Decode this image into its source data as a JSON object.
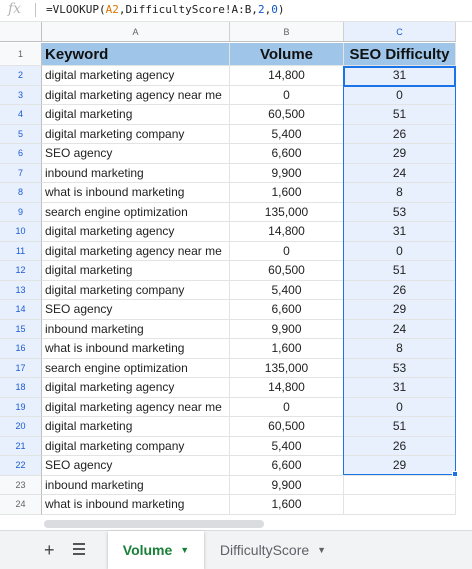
{
  "formula_bar": {
    "fx_label": "fx",
    "formula_prefix": "=VLOOKUP(",
    "formula_ref": "A2",
    "formula_mid": ",DifficultyScore!A:B,",
    "formula_n1": "2",
    "formula_comma": ",",
    "formula_n2": "0",
    "formula_suffix": ")"
  },
  "columns": [
    "A",
    "B",
    "C"
  ],
  "header_row": {
    "row_number": "1",
    "keyword": "Keyword",
    "volume": "Volume",
    "seo_difficulty": "SEO Difficulty"
  },
  "rows": [
    {
      "n": "2",
      "keyword": "digital marketing agency",
      "volume": "14,800",
      "difficulty": "31"
    },
    {
      "n": "3",
      "keyword": "digital marketing agency near me",
      "volume": "0",
      "difficulty": "0"
    },
    {
      "n": "4",
      "keyword": "digital marketing",
      "volume": "60,500",
      "difficulty": "51"
    },
    {
      "n": "5",
      "keyword": "digital marketing company",
      "volume": "5,400",
      "difficulty": "26"
    },
    {
      "n": "6",
      "keyword": "SEO agency",
      "volume": "6,600",
      "difficulty": "29"
    },
    {
      "n": "7",
      "keyword": "inbound marketing",
      "volume": "9,900",
      "difficulty": "24"
    },
    {
      "n": "8",
      "keyword": "what is inbound marketing",
      "volume": "1,600",
      "difficulty": "8"
    },
    {
      "n": "9",
      "keyword": "search engine optimization",
      "volume": "135,000",
      "difficulty": "53"
    },
    {
      "n": "10",
      "keyword": "digital marketing agency",
      "volume": "14,800",
      "difficulty": "31"
    },
    {
      "n": "11",
      "keyword": "digital marketing agency near me",
      "volume": "0",
      "difficulty": "0"
    },
    {
      "n": "12",
      "keyword": "digital marketing",
      "volume": "60,500",
      "difficulty": "51"
    },
    {
      "n": "13",
      "keyword": "digital marketing company",
      "volume": "5,400",
      "difficulty": "26"
    },
    {
      "n": "14",
      "keyword": "SEO agency",
      "volume": "6,600",
      "difficulty": "29"
    },
    {
      "n": "15",
      "keyword": "inbound marketing",
      "volume": "9,900",
      "difficulty": "24"
    },
    {
      "n": "16",
      "keyword": "what is inbound marketing",
      "volume": "1,600",
      "difficulty": "8"
    },
    {
      "n": "17",
      "keyword": "search engine optimization",
      "volume": "135,000",
      "difficulty": "53"
    },
    {
      "n": "18",
      "keyword": "digital marketing agency",
      "volume": "14,800",
      "difficulty": "31"
    },
    {
      "n": "19",
      "keyword": "digital marketing agency near me",
      "volume": "0",
      "difficulty": "0"
    },
    {
      "n": "20",
      "keyword": "digital marketing",
      "volume": "60,500",
      "difficulty": "51"
    },
    {
      "n": "21",
      "keyword": "digital marketing company",
      "volume": "5,400",
      "difficulty": "26"
    },
    {
      "n": "22",
      "keyword": "SEO agency",
      "volume": "6,600",
      "difficulty": "29"
    },
    {
      "n": "23",
      "keyword": "inbound marketing",
      "volume": "9,900",
      "difficulty": ""
    },
    {
      "n": "24",
      "keyword": "what is inbound marketing",
      "volume": "1,600",
      "difficulty": ""
    }
  ],
  "sheet_tabs": {
    "add_icon": "+",
    "active_tab": "Volume",
    "other_tab": "DifficultyScore"
  },
  "colors": {
    "header_fill": "#9fc5e8",
    "selection_fill": "#e8f0fe",
    "selection_border": "#1a73e8",
    "active_tab_text": "#188038"
  }
}
